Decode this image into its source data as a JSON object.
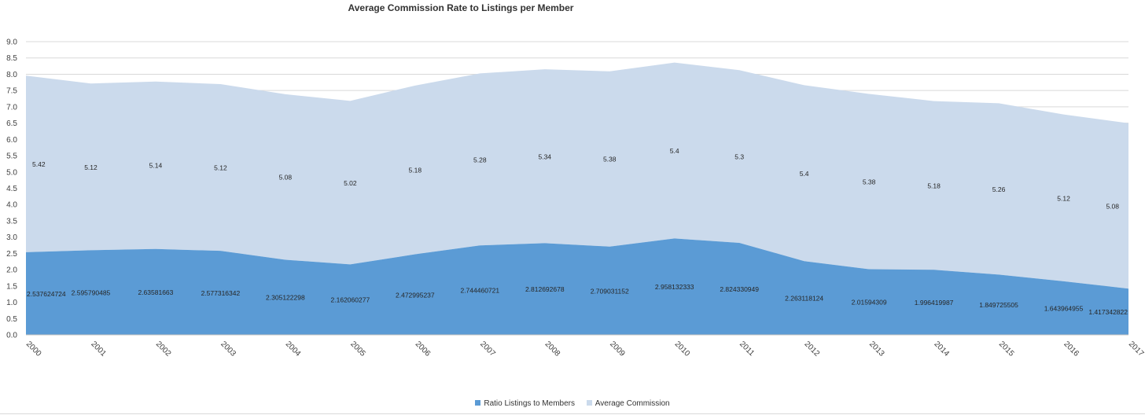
{
  "chart_data": {
    "type": "area",
    "title": "Average Commission Rate to Listings per Member",
    "categories": [
      "2000",
      "2001",
      "2002",
      "2003",
      "2004",
      "2005",
      "2006",
      "2007",
      "2008",
      "2009",
      "2010",
      "2011",
      "2012",
      "2013",
      "2014",
      "2015",
      "2016",
      "2017"
    ],
    "series": [
      {
        "name": "Ratio Listings to Members",
        "color": "#5b9bd5",
        "values": [
          2.537624724,
          2.595790485,
          2.63581663,
          2.577316342,
          2.305122298,
          2.162060277,
          2.472995237,
          2.744460721,
          2.812692678,
          2.709031152,
          2.958132333,
          2.824330949,
          2.263118124,
          2.01594309,
          1.996419987,
          1.849725505,
          1.643964955,
          1.417342822
        ],
        "labels": [
          "2.537624724",
          "2.595790485",
          "2.63581663",
          "2.577316342",
          "2.305122298",
          "2.162060277",
          "2.472995237",
          "2.744460721",
          "2.812692678",
          "2.709031152",
          "2.958132333",
          "2.824330949",
          "2.263118124",
          "2.01594309",
          "1.996419987",
          "1.849725505",
          "1.643964955",
          "1.417342822"
        ]
      },
      {
        "name": "Average Commission",
        "color": "#cbdaec",
        "values": [
          5.42,
          5.12,
          5.14,
          5.12,
          5.08,
          5.02,
          5.18,
          5.28,
          5.34,
          5.38,
          5.4,
          5.3,
          5.4,
          5.38,
          5.18,
          5.26,
          5.12,
          5.08
        ],
        "labels": [
          "5.42",
          "5.12",
          "5.14",
          "5.12",
          "5.08",
          "5.02",
          "5.18",
          "5.28",
          "5.34",
          "5.38",
          "5.4",
          "5.3",
          "5.4",
          "5.38",
          "5.18",
          "5.26",
          "5.12",
          "5.08"
        ]
      }
    ],
    "stacked": true,
    "ylim": [
      0,
      9.0
    ],
    "yticks": [
      "0.0",
      "0.5",
      "1.0",
      "1.5",
      "2.0",
      "2.5",
      "3.0",
      "3.5",
      "4.0",
      "4.5",
      "5.0",
      "5.5",
      "6.0",
      "6.5",
      "7.0",
      "7.5",
      "8.0",
      "8.5",
      "9.0"
    ],
    "xlabel": "",
    "ylabel": "",
    "grid": true,
    "legend": "bottom-center"
  }
}
